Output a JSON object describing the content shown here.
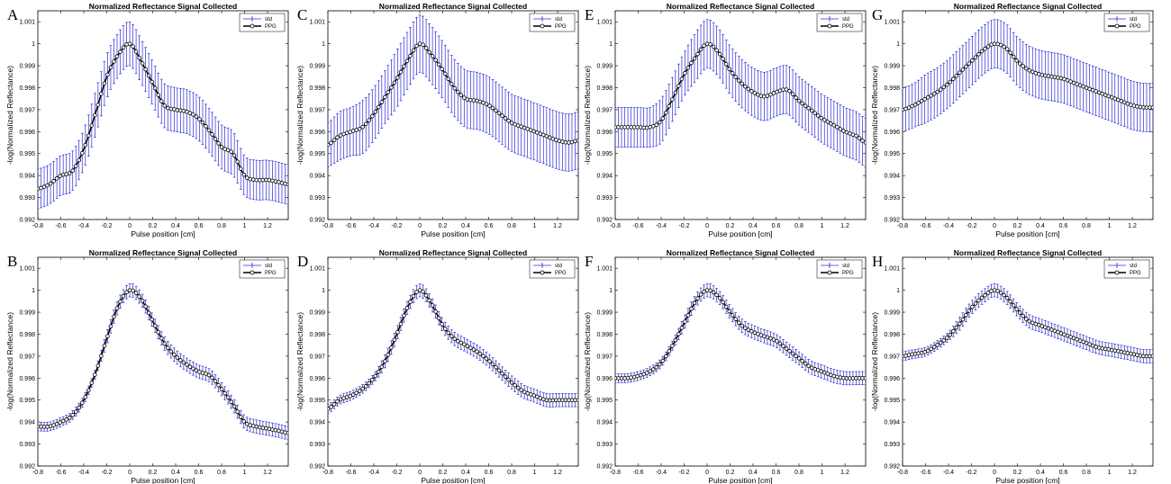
{
  "colors": {
    "errorbar": "#2b2bd6",
    "line": "#000000",
    "marker_face": "#ffffff",
    "axes": "#000000"
  },
  "chart_data": [
    {
      "panel": "A",
      "type": "line",
      "title": "Normalized Reflectance Signal Collected",
      "xlabel": "Pulse position [cm]",
      "ylabel": "-log(Normalized Reflectance)",
      "xlim": [
        -0.8,
        1.38
      ],
      "ylim": [
        0.992,
        1.0015
      ],
      "xticks": [
        "-0.8",
        "-0.6",
        "-0.4",
        "-0.2",
        "0",
        "0.2",
        "0.4",
        "0.6",
        "0.8",
        "1",
        "1.2"
      ],
      "yticks": [
        "0.992",
        "0.993",
        "0.994",
        "0.995",
        "0.996",
        "0.997",
        "0.998",
        "0.999",
        "1",
        "1.001"
      ],
      "legend": [
        "std",
        "PPG"
      ],
      "legend_position": "top-right",
      "series": [
        {
          "name": "PPG",
          "x": [
            -0.8,
            -0.7,
            -0.6,
            -0.5,
            -0.4,
            -0.3,
            -0.2,
            -0.1,
            0,
            0.1,
            0.2,
            0.3,
            0.4,
            0.5,
            0.6,
            0.7,
            0.8,
            0.9,
            1.0,
            1.1,
            1.2,
            1.3,
            1.38
          ],
          "y": [
            0.9934,
            0.9936,
            0.994,
            0.9942,
            0.9952,
            0.9968,
            0.9985,
            0.9995,
            1.0,
            0.9992,
            0.9982,
            0.9972,
            0.997,
            0.9969,
            0.9966,
            0.996,
            0.9953,
            0.995,
            0.994,
            0.9938,
            0.9938,
            0.9937,
            0.9936
          ],
          "std": [
            0.0009,
            0.0009,
            0.0009,
            0.0009,
            0.0009,
            0.001,
            0.001,
            0.001,
            0.001,
            0.001,
            0.001,
            0.001,
            0.001,
            0.001,
            0.001,
            0.001,
            0.001,
            0.001,
            0.0009,
            0.0009,
            0.0009,
            0.0009,
            0.0009
          ]
        }
      ]
    },
    {
      "panel": "B",
      "type": "line",
      "title": "Normalized Reflectance Signal Collected",
      "xlabel": "Pulse position [cm]",
      "ylabel": "-log(Normalized Reflectance)",
      "xlim": [
        -0.8,
        1.38
      ],
      "ylim": [
        0.992,
        1.0015
      ],
      "xticks": [
        "-0.8",
        "-0.6",
        "-0.4",
        "-0.2",
        "0",
        "0.2",
        "0.4",
        "0.6",
        "0.8",
        "1",
        "1.2"
      ],
      "yticks": [
        "0.992",
        "0.993",
        "0.994",
        "0.995",
        "0.996",
        "0.997",
        "0.998",
        "0.999",
        "1",
        "1.001"
      ],
      "legend": [
        "std",
        "PPG"
      ],
      "legend_position": "top-right",
      "series": [
        {
          "name": "PPG",
          "x": [
            -0.8,
            -0.7,
            -0.6,
            -0.5,
            -0.4,
            -0.3,
            -0.2,
            -0.1,
            0,
            0.1,
            0.2,
            0.3,
            0.4,
            0.5,
            0.6,
            0.7,
            0.8,
            0.9,
            1.0,
            1.1,
            1.2,
            1.3,
            1.38
          ],
          "y": [
            0.9938,
            0.9938,
            0.994,
            0.9943,
            0.995,
            0.9962,
            0.9978,
            0.9993,
            1.0,
            0.9996,
            0.9986,
            0.9976,
            0.997,
            0.9966,
            0.9963,
            0.9961,
            0.9955,
            0.9948,
            0.994,
            0.9938,
            0.9937,
            0.9936,
            0.9935
          ],
          "std": [
            0.0002,
            0.0002,
            0.0002,
            0.0002,
            0.0002,
            0.0002,
            0.0003,
            0.0003,
            0.0003,
            0.0003,
            0.0003,
            0.0003,
            0.0003,
            0.0003,
            0.0003,
            0.0003,
            0.0003,
            0.0003,
            0.0003,
            0.0003,
            0.0003,
            0.0003,
            0.0003
          ]
        }
      ]
    },
    {
      "panel": "C",
      "type": "line",
      "title": "Normalized Reflectance Signal Collected",
      "xlabel": "Pulse position [cm]",
      "ylabel": "-log(Normalized Reflectance)",
      "xlim": [
        -0.8,
        1.38
      ],
      "ylim": [
        0.992,
        1.0015
      ],
      "xticks": [
        "-0.8",
        "-0.6",
        "-0.4",
        "-0.2",
        "0",
        "0.2",
        "0.4",
        "0.6",
        "0.8",
        "1",
        "1.2"
      ],
      "yticks": [
        "0.992",
        "0.993",
        "0.994",
        "0.995",
        "0.996",
        "0.997",
        "0.998",
        "0.999",
        "1",
        "1.001"
      ],
      "legend": [
        "std",
        "PPG"
      ],
      "legend_position": "top-right",
      "series": [
        {
          "name": "PPG",
          "x": [
            -0.8,
            -0.7,
            -0.6,
            -0.5,
            -0.4,
            -0.3,
            -0.2,
            -0.1,
            0,
            0.1,
            0.2,
            0.3,
            0.4,
            0.5,
            0.6,
            0.7,
            0.8,
            0.9,
            1.0,
            1.1,
            1.2,
            1.3,
            1.38
          ],
          "y": [
            0.9954,
            0.9958,
            0.996,
            0.9962,
            0.9968,
            0.9976,
            0.9984,
            0.9993,
            1.0,
            0.9995,
            0.9988,
            0.998,
            0.9975,
            0.9974,
            0.9972,
            0.9968,
            0.9964,
            0.9962,
            0.996,
            0.9958,
            0.9956,
            0.9955,
            0.9956
          ],
          "std": [
            0.001,
            0.0011,
            0.0011,
            0.0012,
            0.0012,
            0.0012,
            0.0013,
            0.0013,
            0.0013,
            0.0013,
            0.0013,
            0.0013,
            0.0013,
            0.0013,
            0.0013,
            0.0013,
            0.0013,
            0.0013,
            0.0013,
            0.0013,
            0.0013,
            0.0013,
            0.0013
          ]
        }
      ]
    },
    {
      "panel": "D",
      "type": "line",
      "title": "Normalized Reflectance Signal Collected",
      "xlabel": "Pulse position [cm]",
      "ylabel": "-log(Normalized Reflectance)",
      "xlim": [
        -0.8,
        1.38
      ],
      "ylim": [
        0.992,
        1.0015
      ],
      "xticks": [
        "-0.8",
        "-0.6",
        "-0.4",
        "-0.2",
        "0",
        "0.2",
        "0.4",
        "0.6",
        "0.8",
        "1",
        "1.2"
      ],
      "yticks": [
        "0.992",
        "0.993",
        "0.994",
        "0.995",
        "0.996",
        "0.997",
        "0.998",
        "0.999",
        "1",
        "1.001"
      ],
      "legend": [
        "std",
        "PPG"
      ],
      "legend_position": "top-right",
      "series": [
        {
          "name": "PPG",
          "x": [
            -0.8,
            -0.7,
            -0.6,
            -0.5,
            -0.4,
            -0.3,
            -0.2,
            -0.1,
            0,
            0.1,
            0.2,
            0.3,
            0.4,
            0.5,
            0.6,
            0.7,
            0.8,
            0.9,
            1.0,
            1.1,
            1.2,
            1.3,
            1.38
          ],
          "y": [
            0.9946,
            0.995,
            0.9952,
            0.9955,
            0.996,
            0.9968,
            0.998,
            0.9993,
            1.0,
            0.9994,
            0.9984,
            0.9978,
            0.9975,
            0.9972,
            0.9968,
            0.9963,
            0.9958,
            0.9954,
            0.9952,
            0.995,
            0.995,
            0.995,
            0.995
          ],
          "std": [
            0.0002,
            0.0002,
            0.0002,
            0.0002,
            0.0002,
            0.0003,
            0.0003,
            0.0003,
            0.0003,
            0.0003,
            0.0003,
            0.0003,
            0.0003,
            0.0003,
            0.0003,
            0.0003,
            0.0003,
            0.0003,
            0.0003,
            0.0003,
            0.0003,
            0.0003,
            0.0003
          ]
        }
      ]
    },
    {
      "panel": "E",
      "type": "line",
      "title": "Normalized Reflectance Signal Collected",
      "xlabel": "Pulse position [cm]",
      "ylabel": "-log(Normalized Reflectance)",
      "xlim": [
        -0.8,
        1.38
      ],
      "ylim": [
        0.992,
        1.0015
      ],
      "xticks": [
        "-0.8",
        "-0.6",
        "-0.4",
        "-0.2",
        "0",
        "0.2",
        "0.4",
        "0.6",
        "0.8",
        "1",
        "1.2"
      ],
      "yticks": [
        "0.992",
        "0.993",
        "0.994",
        "0.995",
        "0.996",
        "0.997",
        "0.998",
        "0.999",
        "1",
        "1.001"
      ],
      "legend": [
        "std",
        "PPG"
      ],
      "legend_position": "top-right",
      "series": [
        {
          "name": "PPG",
          "x": [
            -0.8,
            -0.7,
            -0.6,
            -0.5,
            -0.4,
            -0.3,
            -0.2,
            -0.1,
            0,
            0.1,
            0.2,
            0.3,
            0.4,
            0.5,
            0.6,
            0.7,
            0.8,
            0.9,
            1.0,
            1.1,
            1.2,
            1.3,
            1.38
          ],
          "y": [
            0.9962,
            0.9962,
            0.9962,
            0.9962,
            0.9965,
            0.9975,
            0.9986,
            0.9994,
            1.0,
            0.9996,
            0.9988,
            0.9982,
            0.9978,
            0.9976,
            0.9978,
            0.9979,
            0.9974,
            0.997,
            0.9966,
            0.9963,
            0.996,
            0.9958,
            0.9955
          ],
          "std": [
            0.0009,
            0.0009,
            0.0009,
            0.0009,
            0.001,
            0.001,
            0.001,
            0.0011,
            0.0011,
            0.0011,
            0.0011,
            0.0011,
            0.0011,
            0.0011,
            0.0011,
            0.0011,
            0.0011,
            0.0011,
            0.0011,
            0.0011,
            0.0011,
            0.0011,
            0.0011
          ]
        }
      ]
    },
    {
      "panel": "F",
      "type": "line",
      "title": "Normalized Reflectance Signal Collected",
      "xlabel": "Pulse position [cm]",
      "ylabel": "-log(Normalized Reflectance)",
      "xlim": [
        -0.8,
        1.38
      ],
      "ylim": [
        0.992,
        1.0015
      ],
      "xticks": [
        "-0.8",
        "-0.6",
        "-0.4",
        "-0.2",
        "0",
        "0.2",
        "0.4",
        "0.6",
        "0.8",
        "1",
        "1.2"
      ],
      "yticks": [
        "0.992",
        "0.993",
        "0.994",
        "0.995",
        "0.996",
        "0.997",
        "0.998",
        "0.999",
        "1",
        "1.001"
      ],
      "legend": [
        "std",
        "PPG"
      ],
      "legend_position": "top-right",
      "series": [
        {
          "name": "PPG",
          "x": [
            -0.8,
            -0.7,
            -0.6,
            -0.5,
            -0.4,
            -0.3,
            -0.2,
            -0.1,
            0,
            0.1,
            0.2,
            0.3,
            0.4,
            0.5,
            0.6,
            0.7,
            0.8,
            0.9,
            1.0,
            1.1,
            1.2,
            1.3,
            1.38
          ],
          "y": [
            0.996,
            0.996,
            0.9961,
            0.9963,
            0.9967,
            0.9975,
            0.9985,
            0.9995,
            1.0,
            0.9997,
            0.999,
            0.9984,
            0.9981,
            0.9979,
            0.9977,
            0.9973,
            0.9969,
            0.9965,
            0.9963,
            0.9961,
            0.996,
            0.996,
            0.996
          ],
          "std": [
            0.0002,
            0.0002,
            0.0002,
            0.0002,
            0.0002,
            0.0002,
            0.0003,
            0.0003,
            0.0003,
            0.0003,
            0.0003,
            0.0003,
            0.0003,
            0.0003,
            0.0003,
            0.0003,
            0.0003,
            0.0003,
            0.0003,
            0.0003,
            0.0003,
            0.0003,
            0.0003
          ]
        }
      ]
    },
    {
      "panel": "G",
      "type": "line",
      "title": "Normalized Reflectance Signal Collected",
      "xlabel": "Pulse position [cm]",
      "ylabel": "-log(Normalized Reflectance)",
      "xlim": [
        -0.8,
        1.38
      ],
      "ylim": [
        0.992,
        1.0015
      ],
      "xticks": [
        "-0.8",
        "-0.6",
        "-0.4",
        "-0.2",
        "0",
        "0.2",
        "0.4",
        "0.6",
        "0.8",
        "1",
        "1.2"
      ],
      "yticks": [
        "0.992",
        "0.993",
        "0.994",
        "0.995",
        "0.996",
        "0.997",
        "0.998",
        "0.999",
        "1",
        "1.001"
      ],
      "legend": [
        "std",
        "PPG"
      ],
      "legend_position": "top-right",
      "series": [
        {
          "name": "PPG",
          "x": [
            -0.8,
            -0.7,
            -0.6,
            -0.5,
            -0.4,
            -0.3,
            -0.2,
            -0.1,
            0,
            0.1,
            0.2,
            0.3,
            0.4,
            0.5,
            0.6,
            0.7,
            0.8,
            0.9,
            1.0,
            1.1,
            1.2,
            1.3,
            1.38
          ],
          "y": [
            0.997,
            0.9972,
            0.9975,
            0.9978,
            0.9982,
            0.9987,
            0.9992,
            0.9997,
            1.0,
            0.9998,
            0.9992,
            0.9988,
            0.9986,
            0.9985,
            0.9984,
            0.9982,
            0.998,
            0.9978,
            0.9976,
            0.9974,
            0.9972,
            0.9971,
            0.9971
          ],
          "std": [
            0.001,
            0.001,
            0.0011,
            0.0011,
            0.0011,
            0.0011,
            0.0011,
            0.0011,
            0.0011,
            0.0011,
            0.0011,
            0.0011,
            0.0011,
            0.0011,
            0.0011,
            0.0011,
            0.0011,
            0.0011,
            0.0011,
            0.0011,
            0.0011,
            0.0011,
            0.0011
          ]
        }
      ]
    },
    {
      "panel": "H",
      "type": "line",
      "title": "Normalized Reflectance Signal Collected",
      "xlabel": "Pulse position [cm]",
      "ylabel": "-log(Normalized Reflectance)",
      "xlim": [
        -0.8,
        1.38
      ],
      "ylim": [
        0.992,
        1.0015
      ],
      "xticks": [
        "-0.8",
        "-0.6",
        "-0.4",
        "-0.2",
        "0",
        "0.2",
        "0.4",
        "0.6",
        "0.8",
        "1",
        "1.2"
      ],
      "yticks": [
        "0.992",
        "0.993",
        "0.994",
        "0.995",
        "0.996",
        "0.997",
        "0.998",
        "0.999",
        "1",
        "1.001"
      ],
      "legend": [
        "std",
        "PPG"
      ],
      "legend_position": "top-right",
      "series": [
        {
          "name": "PPG",
          "x": [
            -0.8,
            -0.7,
            -0.6,
            -0.5,
            -0.4,
            -0.3,
            -0.2,
            -0.1,
            0,
            0.1,
            0.2,
            0.3,
            0.4,
            0.5,
            0.6,
            0.7,
            0.8,
            0.9,
            1.0,
            1.1,
            1.2,
            1.3,
            1.38
          ],
          "y": [
            0.997,
            0.9971,
            0.9972,
            0.9975,
            0.9979,
            0.9985,
            0.9992,
            0.9997,
            1.0,
            0.9997,
            0.9991,
            0.9986,
            0.9984,
            0.9982,
            0.998,
            0.9978,
            0.9976,
            0.9974,
            0.9973,
            0.9972,
            0.9971,
            0.997,
            0.997
          ],
          "std": [
            0.0002,
            0.0002,
            0.0002,
            0.0002,
            0.0002,
            0.0003,
            0.0003,
            0.0003,
            0.0003,
            0.0003,
            0.0003,
            0.0003,
            0.0003,
            0.0003,
            0.0003,
            0.0003,
            0.0003,
            0.0003,
            0.0003,
            0.0003,
            0.0003,
            0.0003,
            0.0003
          ]
        }
      ]
    }
  ]
}
